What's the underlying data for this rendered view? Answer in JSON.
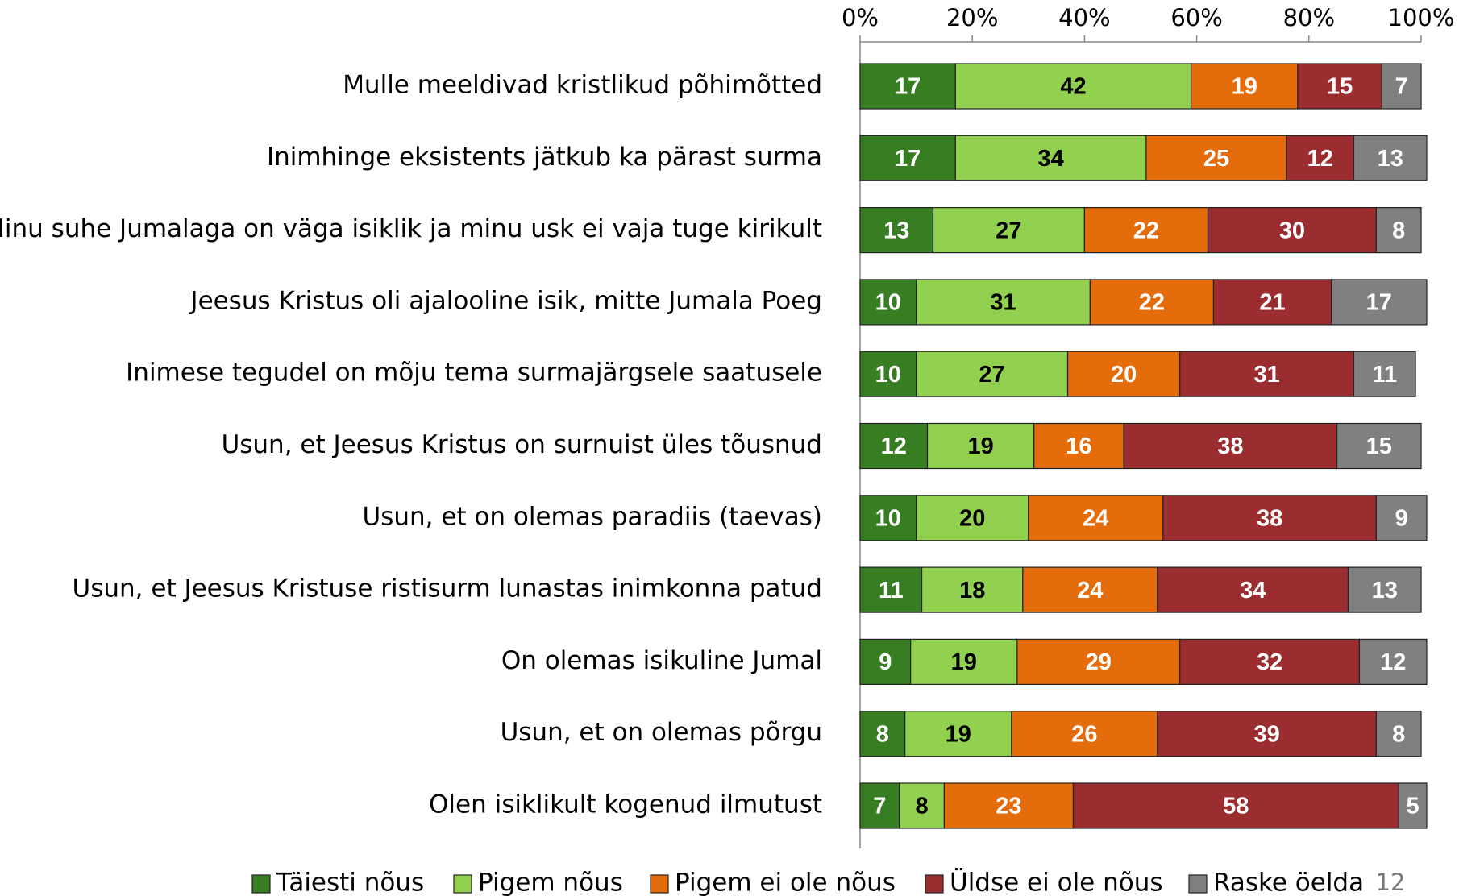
{
  "chart_data": {
    "type": "stacked_barh",
    "categories": [
      "Mulle meeldivad kristlikud põhimõtted",
      "Inimhinge eksistents jätkub ka pärast surma",
      "Minu suhe Jumalaga on väga isiklik ja minu usk ei vaja tuge kirikult",
      "Jeesus Kristus oli ajalooline isik, mitte Jumala Poeg",
      "Inimese tegudel on mõju tema surmajärgsele saatusele",
      "Usun, et Jeesus Kristus on surnuist üles tõusnud",
      "Usun, et on olemas paradiis (taevas)",
      "Usun, et Jeesus Kristuse ristisurm lunastas inimkonna patud",
      "On olemas isikuline Jumal",
      "Usun, et on olemas põrgu",
      "Olen isiklikult kogenud ilmutust"
    ],
    "series": [
      {
        "name": "Täiesti nõus",
        "color": "#377d22",
        "values": [
          17,
          17,
          13,
          10,
          10,
          12,
          10,
          11,
          9,
          8,
          7
        ]
      },
      {
        "name": "Pigem nõus",
        "color": "#92d050",
        "values": [
          42,
          34,
          27,
          31,
          27,
          19,
          20,
          18,
          19,
          19,
          8
        ]
      },
      {
        "name": "Pigem ei ole nõus",
        "color": "#e46c0a",
        "values": [
          19,
          25,
          22,
          22,
          20,
          16,
          24,
          24,
          29,
          26,
          23
        ]
      },
      {
        "name": "Üldse ei ole nõus",
        "color": "#9b2d30",
        "values": [
          15,
          12,
          30,
          21,
          31,
          38,
          38,
          34,
          32,
          39,
          58
        ]
      },
      {
        "name": "Raske öelda",
        "color": "#808080",
        "values": [
          7,
          13,
          8,
          17,
          11,
          15,
          9,
          13,
          12,
          8,
          5
        ]
      }
    ],
    "xlim": [
      0,
      100
    ],
    "xticks": [
      {
        "value": 0,
        "label": "0%"
      },
      {
        "value": 20,
        "label": "20%"
      },
      {
        "value": 40,
        "label": "40%"
      },
      {
        "value": 60,
        "label": "60%"
      },
      {
        "value": 80,
        "label": "80%"
      },
      {
        "value": 100,
        "label": "100%"
      }
    ],
    "legend": "bottom",
    "page_number": "12"
  }
}
